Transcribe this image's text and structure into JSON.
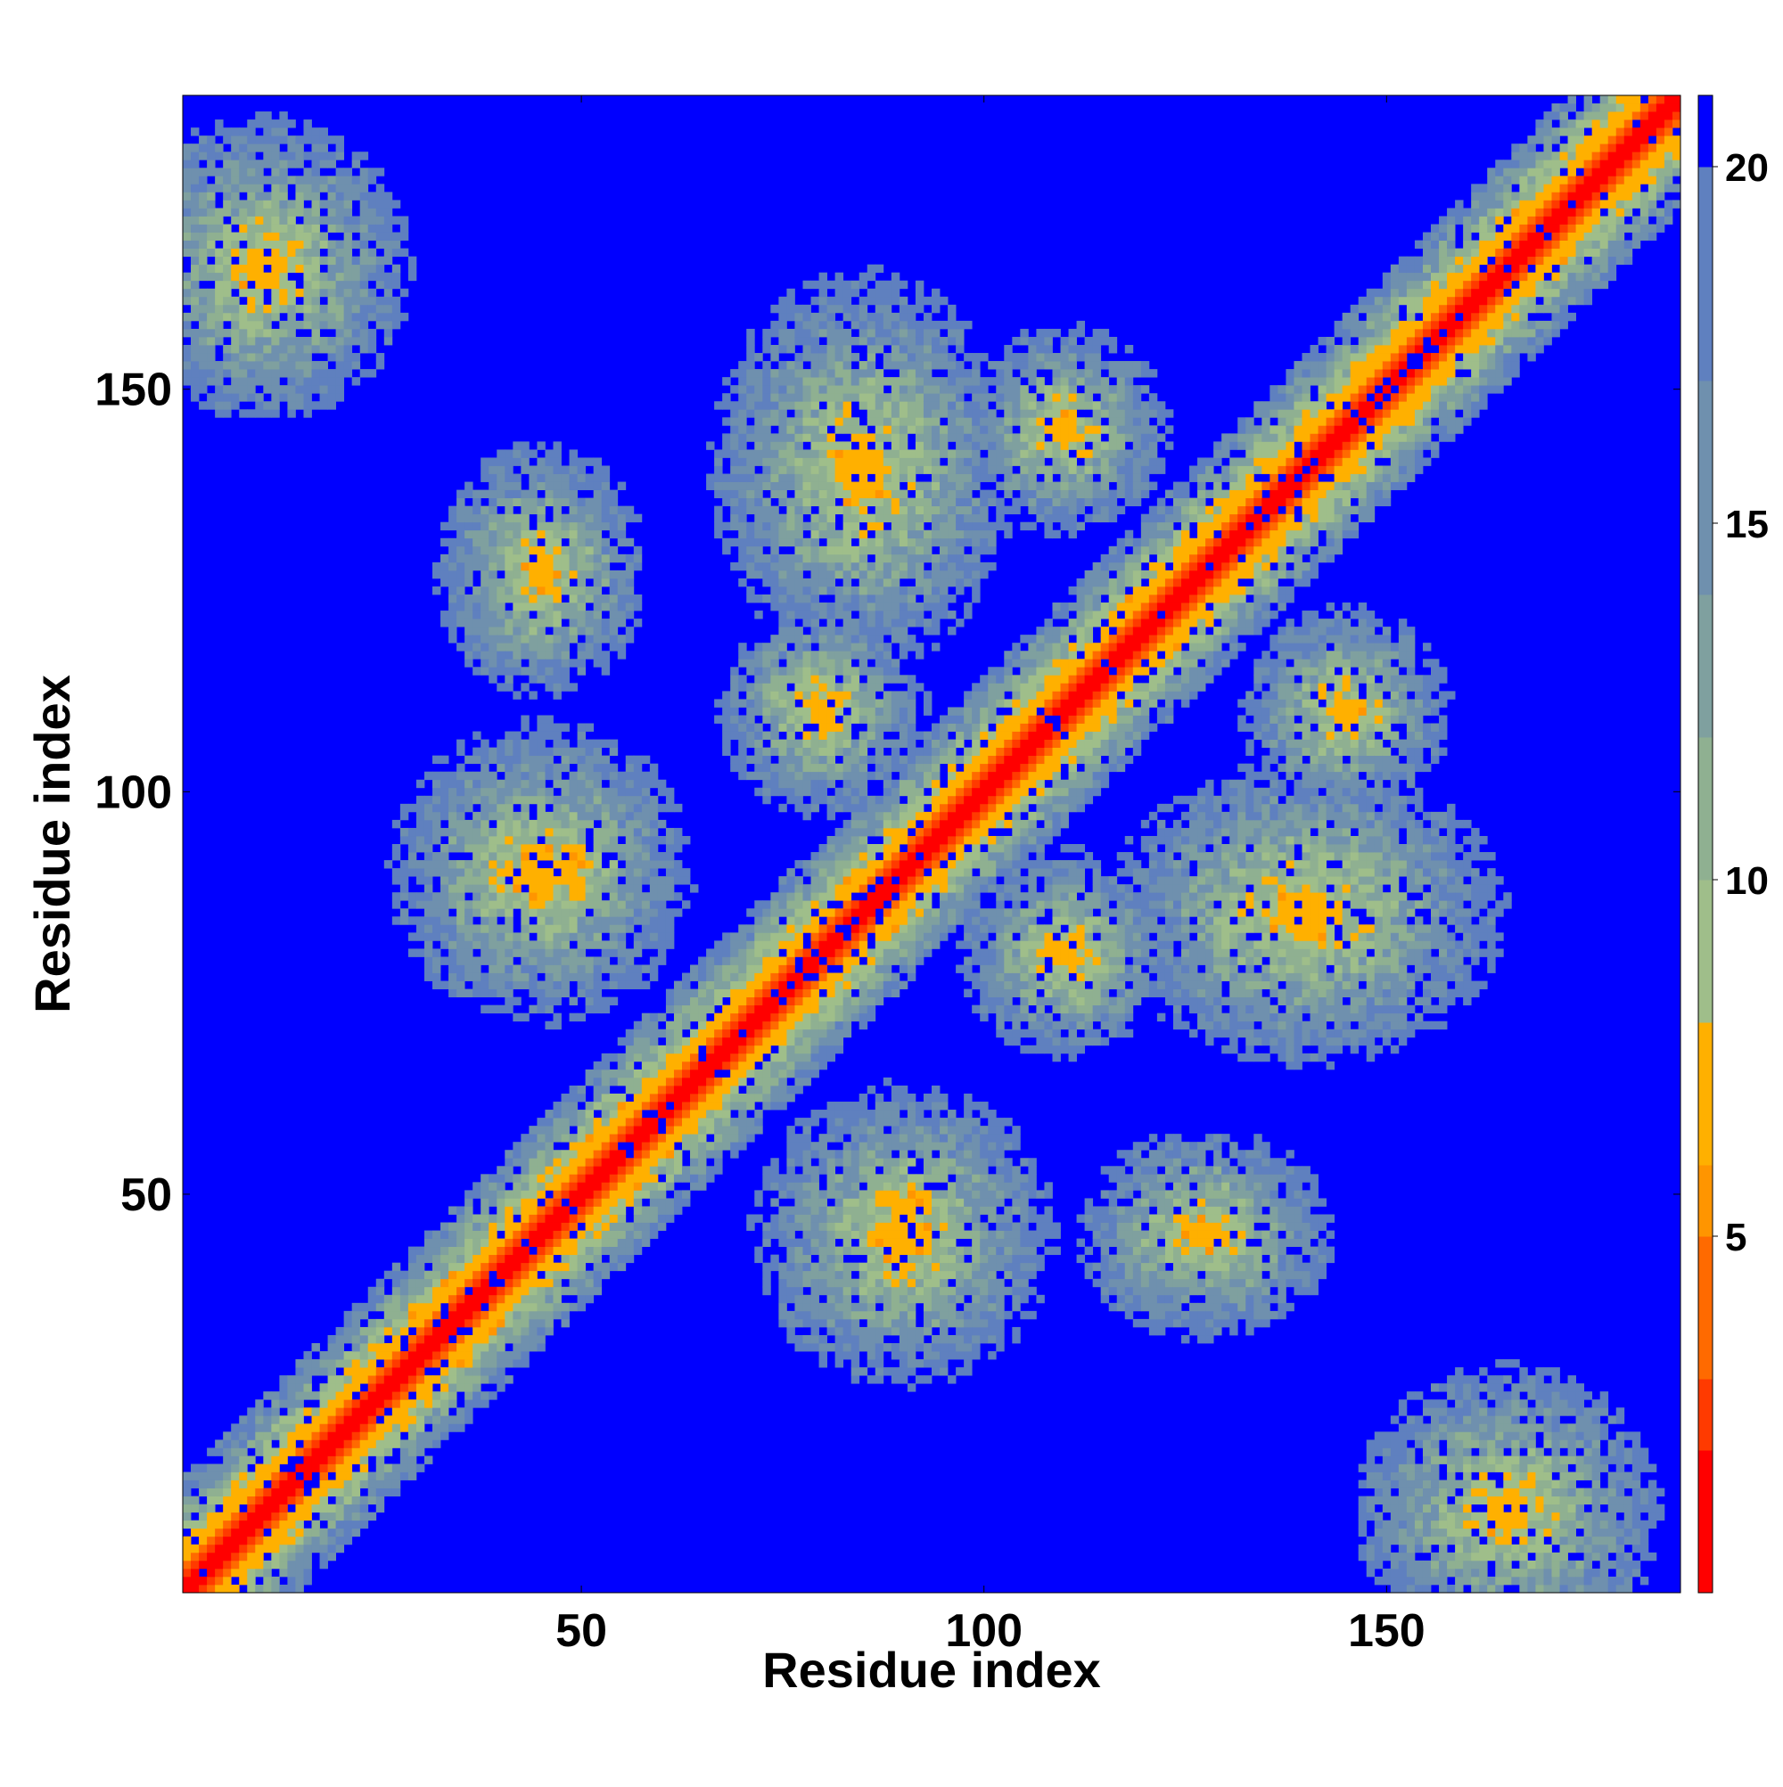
{
  "chart_data": {
    "type": "heatmap",
    "title": "",
    "xlabel": "Residue index",
    "ylabel": "Residue index",
    "xlim": [
      1,
      186
    ],
    "ylim": [
      1,
      186
    ],
    "x_ticks": [
      50,
      100,
      150
    ],
    "y_ticks": [
      50,
      100,
      150
    ],
    "colorbar": {
      "ticks": [
        5,
        10,
        15,
        20
      ],
      "range": [
        0,
        21
      ],
      "colors": [
        "#ff0000",
        "#ff3a00",
        "#ff6a00",
        "#ff9500",
        "#ffb000",
        "#9fbe8a",
        "#8fb091",
        "#7fa09f",
        "#6f90ae",
        "#5f80bf",
        "#0000ff"
      ],
      "bounds": [
        0,
        2,
        3,
        5,
        6,
        8,
        10,
        12,
        14,
        17,
        20,
        21
      ]
    },
    "matrix_description": "Symmetric residue-residue distance matrix; low values (red/orange) along the diagonal and at contact regions, high values (blue) elsewhere.",
    "contact_regions": [
      {
        "x": [
          1,
          186
        ],
        "y": [
          1,
          186
        ],
        "kind": "diagonal"
      },
      {
        "x": [
          1,
          20
        ],
        "y": [
          155,
          175
        ]
      },
      {
        "x": [
          155,
          175
        ],
        "y": [
          1,
          20
        ]
      },
      {
        "x": [
          75,
          95
        ],
        "y": [
          125,
          155
        ]
      },
      {
        "x": [
          125,
          155
        ],
        "y": [
          75,
          95
        ]
      },
      {
        "x": [
          105,
          115
        ],
        "y": [
          140,
          150
        ]
      },
      {
        "x": [
          140,
          150
        ],
        "y": [
          105,
          115
        ]
      },
      {
        "x": [
          75,
          85
        ],
        "y": [
          105,
          115
        ]
      },
      {
        "x": [
          105,
          115
        ],
        "y": [
          75,
          85
        ]
      },
      {
        "x": [
          35,
          55
        ],
        "y": [
          80,
          100
        ]
      },
      {
        "x": [
          80,
          100
        ],
        "y": [
          35,
          55
        ]
      },
      {
        "x": [
          40,
          50
        ],
        "y": [
          120,
          135
        ]
      },
      {
        "x": [
          120,
          135
        ],
        "y": [
          40,
          50
        ]
      },
      {
        "x": [
          85,
          95
        ],
        "y": [
          40,
          55
        ]
      },
      {
        "x": [
          40,
          55
        ],
        "y": [
          85,
          95
        ]
      }
    ]
  }
}
